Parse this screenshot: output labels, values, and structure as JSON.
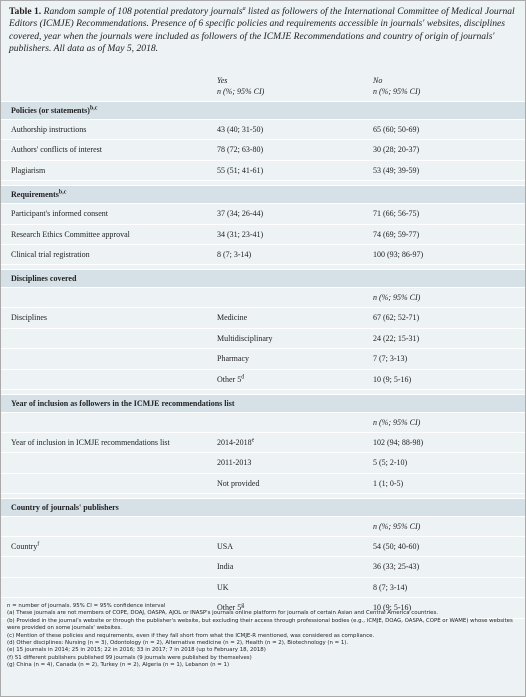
{
  "caption": {
    "label": "Table 1.",
    "text_1": "Random sample of 108 potential predatory journals",
    "sup": "a",
    "text_2": "listed as followers of the International Committee of Medical Journal Editors (ICMJE) Recommendations. Presence of 6 specific policies and requirements accessible in journals' websites, disciplines covered, year when the journals were included as followers of the ICMJE Recommendations and country of origin of journals' publishers. All data as of May 5, 2018."
  },
  "header": {
    "yes": "Yes",
    "yes_unit": "n (%; 95% CI)",
    "no": "No",
    "no_unit": "n (%; 95% CI)"
  },
  "sections": [
    {
      "title": "Policies (or statements)",
      "title_sup": "b,c",
      "rows": [
        {
          "label": "Authorship instructions",
          "yes": "43 (40; 31-50)",
          "no": "65 (60; 50-69)"
        },
        {
          "label": "Authors' conflicts of interest",
          "yes": "78 (72; 63-80)",
          "no": "30 (28; 20-37)"
        },
        {
          "label": "Plagiarism",
          "yes": "55 (51; 41-61)",
          "no": "53 (49; 39-59)"
        }
      ]
    },
    {
      "title": "Requirements",
      "title_sup": "b,c",
      "rows": [
        {
          "label": "Participant's informed consent",
          "yes": "37 (34; 26-44)",
          "no": "71 (66; 56-75)"
        },
        {
          "label": "Research Ethics Committee approval",
          "yes": "34 (31; 23-41)",
          "no": "74 (69; 59-77)"
        },
        {
          "label": "Clinical trial registration",
          "yes": "8 (7; 3-14)",
          "no": "100 (93; 86-97)"
        }
      ]
    },
    {
      "title": "Disciplines covered",
      "unit": "n (%; 95% CI)",
      "label": "Disciplines",
      "rows": [
        {
          "category": "Medicine",
          "value": "67 (62; 52-71)"
        },
        {
          "category": "Multidisciplinary",
          "value": "24 (22; 15-31)"
        },
        {
          "category": "Pharmacy",
          "value": "7 (7; 3-13)"
        },
        {
          "category": "Other 5",
          "category_sup": "d",
          "value": "10 (9; 5-16)"
        }
      ]
    },
    {
      "title": "Year of inclusion as followers in the ICMJE recommendations list",
      "unit": "n (%; 95% CI)",
      "label": "Year of inclusion in ICMJE recommendations list",
      "rows": [
        {
          "category": "2014-2018",
          "category_sup": "e",
          "value": "102 (94; 88-98)"
        },
        {
          "category": "2011-2013",
          "value": "5 (5; 2-10)"
        },
        {
          "category": "Not provided",
          "value": "1 (1; 0-5)"
        }
      ]
    },
    {
      "title": "Country of journals' publishers",
      "unit": "n (%; 95% CI)",
      "label": "Country",
      "label_sup": "f",
      "rows": [
        {
          "category": "USA",
          "value": "54 (50; 40-60)"
        },
        {
          "category": "India",
          "value": "36 (33; 25-43)"
        },
        {
          "category": "UK",
          "value": "8 (7; 3-14)"
        },
        {
          "category": "Other 5",
          "category_sup": "g",
          "value": "10 (9; 5-16)"
        }
      ]
    }
  ],
  "footnotes": [
    "n = number of journals. 95% CI = 95% confidence interval",
    "(a) These journals are not members of COPE, DOAJ, OASPA, AJOL or INASP's journals online platform for journals of certain Asian and Central America countries.",
    "(b) Provided in the journal's website or through the publisher's website, but excluding their access through professional bodies (e.g., ICMJE, DOAG, OASPA, COPE or WAME) whose websites were provided on some journals' websites.",
    "(c) Mention of these policies and requirements, even if they fall short from what the ICMJE-R mentioned, was considered as compliance.",
    "(d) Other disciplines: Nursing (n = 3), Odontology (n = 2), Alternative medicine (n = 2), Health (n = 2), Biotechnology (n = 1).",
    "(e) 15 journals in 2014; 25 in 2015; 22 in 2016; 33 in 2017; 7 in 2018 (up to February 18, 2018)",
    "(f) 51 different publishers published 99 journals (9 journals were published by themselves)",
    "(g) China (n = 4), Canada (n = 2), Turkey (n = 2), Algeria (n = 1), Lebanon (n = 1)"
  ]
}
